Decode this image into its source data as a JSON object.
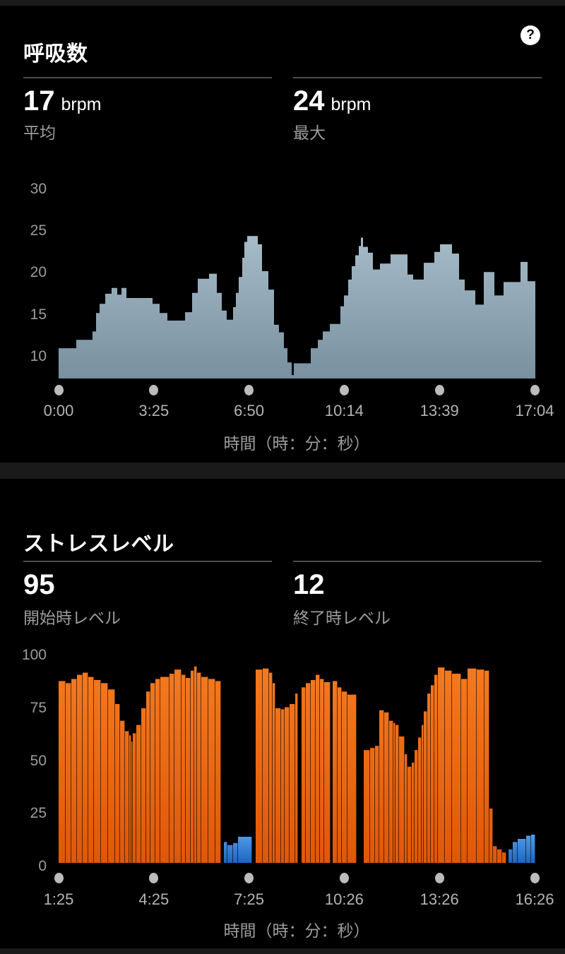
{
  "respiration": {
    "title": "呼吸数",
    "help_icon": "?",
    "stats": [
      {
        "value": "17",
        "unit": "brpm",
        "label": "平均"
      },
      {
        "value": "24",
        "unit": "brpm",
        "label": "最大"
      }
    ]
  },
  "stress": {
    "title": "ストレスレベル",
    "stats": [
      {
        "value": "95",
        "unit": "",
        "label": "開始時レベル"
      },
      {
        "value": "12",
        "unit": "",
        "label": "終了時レベル"
      }
    ]
  },
  "colors": {
    "background": "#000000",
    "separator": "#1a1a1a",
    "respiration_area": "#8fa6b5",
    "stress_orange": "#ed6414",
    "rest_blue": "#3c8ee0",
    "tick_text": "#9c9c9c",
    "xtick_text": "#b4b4b4",
    "dot": "#bcbcbc"
  },
  "chart_data": [
    {
      "id": "respiration",
      "type": "area",
      "title": "呼吸数",
      "unit": "brpm",
      "avg": 17,
      "max": 24,
      "xlabel": "時間（時：分：秒）",
      "y_ticks": [
        30,
        25,
        20,
        15,
        10
      ],
      "x_ticks": [
        "0:00",
        "3:25",
        "6:50",
        "10:14",
        "13:39",
        "17:04"
      ],
      "ylim": [
        7.7,
        32
      ],
      "grid": false,
      "segments_wv": [
        [
          25,
          11
        ],
        [
          23,
          12
        ],
        [
          5,
          13
        ],
        [
          5,
          15.2
        ],
        [
          8,
          16.3
        ],
        [
          9,
          17.5
        ],
        [
          8,
          18.2
        ],
        [
          6,
          17.4
        ],
        [
          7,
          18.2
        ],
        [
          37,
          17
        ],
        [
          10,
          16.3
        ],
        [
          11,
          15.2
        ],
        [
          25,
          14.3
        ],
        [
          10,
          15.3
        ],
        [
          8,
          17.6
        ],
        [
          16,
          19.3
        ],
        [
          11,
          19.9
        ],
        [
          7,
          17.6
        ],
        [
          7,
          15.5
        ],
        [
          9,
          14.4
        ],
        [
          4,
          15.9
        ],
        [
          4,
          17.6
        ],
        [
          5,
          19.5
        ],
        [
          3,
          21.8
        ],
        [
          4,
          23.7
        ],
        [
          15,
          24.4
        ],
        [
          6,
          23.4
        ],
        [
          9,
          20.2
        ],
        [
          8,
          18.0
        ],
        [
          7,
          13.8
        ],
        [
          7,
          12.9
        ],
        [
          5,
          11.0
        ],
        [
          6,
          9.3
        ],
        [
          3,
          7.8
        ],
        [
          24,
          9.2
        ],
        [
          10,
          11.0
        ],
        [
          7,
          12.0
        ],
        [
          10,
          13.0
        ],
        [
          15,
          13.9
        ],
        [
          5,
          16.0
        ],
        [
          6,
          17.3
        ],
        [
          5,
          19.2
        ],
        [
          5,
          20.8
        ],
        [
          5,
          22.1
        ],
        [
          3,
          23.2
        ],
        [
          3,
          24.2
        ],
        [
          7,
          23.1
        ],
        [
          7,
          22.4
        ],
        [
          10,
          20.4
        ],
        [
          15,
          21.1
        ],
        [
          24,
          22.2
        ],
        [
          8,
          19.8
        ],
        [
          15,
          19.2
        ],
        [
          15,
          21.2
        ],
        [
          8,
          22.5
        ],
        [
          17,
          23.4
        ],
        [
          10,
          22.3
        ],
        [
          8,
          19.2
        ],
        [
          15,
          17.9
        ],
        [
          12,
          16.2
        ],
        [
          15,
          20.1
        ],
        [
          13,
          17.3
        ],
        [
          24,
          18.9
        ],
        [
          10,
          21.3
        ],
        [
          11,
          19.0
        ]
      ]
    },
    {
      "id": "stress",
      "type": "bar",
      "title": "ストレスレベル",
      "start_level": 95,
      "end_level": 12,
      "xlabel": "時間（時：分：秒）",
      "y_ticks": [
        100,
        75,
        50,
        25,
        0
      ],
      "x_ticks": [
        "1:25",
        "4:25",
        "7:25",
        "10:26",
        "13:26",
        "16:26"
      ],
      "ylim": [
        0,
        100
      ],
      "grid": false,
      "series_legend": {
        "o": "stress-orange",
        "b": "rest-blue",
        "g": "gap"
      },
      "bars_wvt": [
        [
          10,
          87,
          "o"
        ],
        [
          8,
          86,
          "o"
        ],
        [
          8,
          88,
          "o"
        ],
        [
          8,
          90,
          "o"
        ],
        [
          8,
          91,
          "o"
        ],
        [
          8,
          89,
          "o"
        ],
        [
          10,
          87.5,
          "o"
        ],
        [
          10,
          86,
          "o"
        ],
        [
          10,
          83,
          "o"
        ],
        [
          7,
          76,
          "o"
        ],
        [
          7,
          68,
          "o"
        ],
        [
          6,
          63,
          "o"
        ],
        [
          3,
          61,
          "o"
        ],
        [
          2,
          58,
          "o"
        ],
        [
          5,
          62,
          "o"
        ],
        [
          7,
          66,
          "o"
        ],
        [
          7,
          74,
          "o"
        ],
        [
          6,
          82,
          "o"
        ],
        [
          7,
          86,
          "o"
        ],
        [
          7,
          88,
          "o"
        ],
        [
          13,
          89,
          "o"
        ],
        [
          7,
          90.5,
          "o"
        ],
        [
          10,
          92.5,
          "o"
        ],
        [
          6,
          90,
          "o"
        ],
        [
          7,
          88.5,
          "o"
        ],
        [
          5,
          92,
          "o"
        ],
        [
          4,
          94,
          "o"
        ],
        [
          6,
          91,
          "o"
        ],
        [
          10,
          89,
          "o"
        ],
        [
          10,
          88,
          "o"
        ],
        [
          8,
          87,
          "o"
        ],
        [
          4,
          0,
          "g"
        ],
        [
          5,
          10,
          "b"
        ],
        [
          8,
          8.5,
          "b"
        ],
        [
          7,
          9.5,
          "b"
        ],
        [
          20,
          12.5,
          "b"
        ],
        [
          5,
          0,
          "g"
        ],
        [
          10,
          92.5,
          "o"
        ],
        [
          9,
          93,
          "o"
        ],
        [
          5,
          91,
          "o"
        ],
        [
          4,
          86,
          "o"
        ],
        [
          8,
          74,
          "o"
        ],
        [
          5,
          73.5,
          "o"
        ],
        [
          7,
          74.5,
          "o"
        ],
        [
          8,
          76,
          "o"
        ],
        [
          4,
          81,
          "o"
        ],
        [
          5,
          0,
          "g"
        ],
        [
          6,
          84,
          "o"
        ],
        [
          7,
          86,
          "o"
        ],
        [
          7,
          87.5,
          "o"
        ],
        [
          6,
          90,
          "o"
        ],
        [
          6,
          88,
          "o"
        ],
        [
          9,
          86.5,
          "o"
        ],
        [
          3,
          0,
          "g"
        ],
        [
          7,
          87,
          "o"
        ],
        [
          6,
          84,
          "o"
        ],
        [
          8,
          82,
          "o"
        ],
        [
          13,
          80.5,
          "o"
        ],
        [
          10,
          0,
          "g"
        ],
        [
          9,
          54,
          "o"
        ],
        [
          7,
          55,
          "o"
        ],
        [
          6,
          56,
          "o"
        ],
        [
          7,
          73,
          "o"
        ],
        [
          7,
          72,
          "o"
        ],
        [
          6,
          68,
          "o"
        ],
        [
          3,
          67,
          "o"
        ],
        [
          5,
          66,
          "o"
        ],
        [
          8,
          60.5,
          "o"
        ],
        [
          4,
          52,
          "o"
        ],
        [
          6,
          46,
          "o"
        ],
        [
          4,
          48,
          "o"
        ],
        [
          5,
          54,
          "o"
        ],
        [
          5,
          60,
          "o"
        ],
        [
          3,
          66,
          "o"
        ],
        [
          5,
          72.5,
          "o"
        ],
        [
          5,
          81,
          "o"
        ],
        [
          5,
          85,
          "o"
        ],
        [
          5,
          90,
          "o"
        ],
        [
          10,
          93.5,
          "o"
        ],
        [
          10,
          92,
          "o"
        ],
        [
          13,
          90.5,
          "o"
        ],
        [
          9,
          88,
          "o"
        ],
        [
          13,
          93,
          "o"
        ],
        [
          11,
          92.5,
          "o"
        ],
        [
          7,
          92,
          "o"
        ],
        [
          5,
          26,
          "o"
        ],
        [
          6,
          8,
          "o"
        ],
        [
          7,
          6.5,
          "o"
        ],
        [
          6,
          5,
          "o"
        ],
        [
          3,
          0,
          "g"
        ],
        [
          6,
          6.5,
          "b"
        ],
        [
          7,
          10,
          "b"
        ],
        [
          12,
          11.5,
          "b"
        ],
        [
          7,
          13,
          "b"
        ],
        [
          6,
          13.5,
          "b"
        ]
      ]
    }
  ]
}
